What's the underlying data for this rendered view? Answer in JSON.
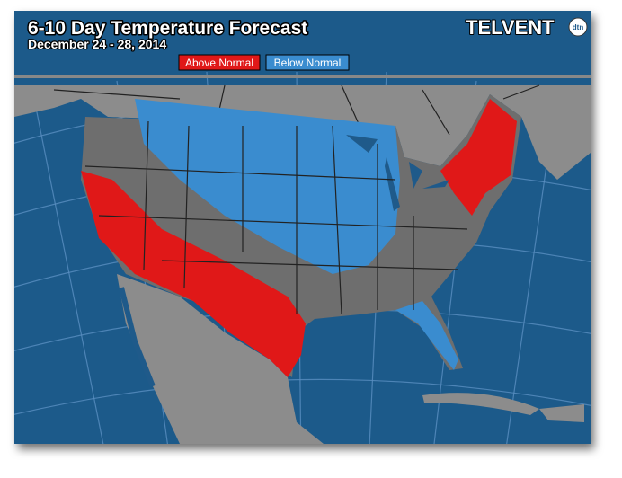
{
  "header": {
    "title": "6-10 Day Temperature Forecast",
    "subtitle": "December 24 - 28, 2014"
  },
  "legend": [
    {
      "label": "Above Normal"
    },
    {
      "label": "Below Normal"
    }
  ],
  "logo": {
    "name": "TELVENT",
    "badge": "dtn"
  }
}
